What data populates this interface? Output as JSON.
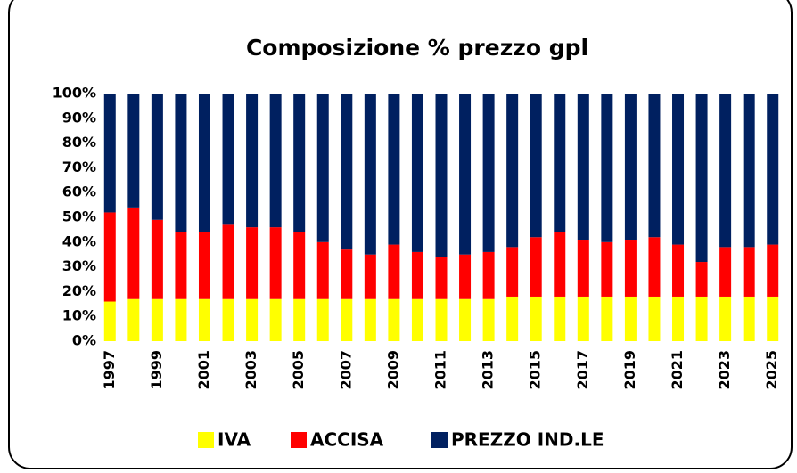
{
  "chart_data": {
    "type": "stacked_bar",
    "title": "Composizione % prezzo gpl",
    "categories": [
      "1997",
      null,
      "1999",
      null,
      "2001",
      null,
      "2003",
      null,
      "2005",
      null,
      "2007",
      null,
      "2009",
      null,
      "2011",
      null,
      "2013",
      null,
      "2015",
      null,
      "2017",
      null,
      "2019",
      null,
      "2021",
      null,
      "2023",
      null,
      "2025"
    ],
    "series": [
      {
        "name": "IVA",
        "color": "#ffff00",
        "values": [
          16,
          17,
          17,
          17,
          17,
          17,
          17,
          17,
          17,
          17,
          17,
          17,
          17,
          17,
          17,
          17,
          17,
          18,
          18,
          18,
          18,
          18,
          18,
          18,
          18,
          18,
          18,
          18,
          18
        ]
      },
      {
        "name": "ACCISA",
        "color": "#ff0000",
        "values": [
          36,
          37,
          32,
          27,
          27,
          30,
          29,
          29,
          27,
          23,
          20,
          18,
          22,
          19,
          17,
          18,
          19,
          20,
          24,
          26,
          23,
          22,
          23,
          24,
          21,
          14,
          20,
          20,
          21
        ]
      },
      {
        "name": "PREZZO IND.LE",
        "color": "#002060",
        "values": [
          48,
          46,
          51,
          56,
          56,
          53,
          54,
          54,
          56,
          60,
          63,
          65,
          61,
          64,
          66,
          65,
          64,
          62,
          58,
          56,
          59,
          60,
          59,
          58,
          61,
          68,
          62,
          62,
          61
        ]
      }
    ],
    "ylim": [
      0,
      100
    ],
    "yticks": [
      {
        "value": 0,
        "label": "0%"
      },
      {
        "value": 10,
        "label": "10%"
      },
      {
        "value": 20,
        "label": "20%"
      },
      {
        "value": 30,
        "label": "30%"
      },
      {
        "value": 40,
        "label": "40%"
      },
      {
        "value": 50,
        "label": "50%"
      },
      {
        "value": 60,
        "label": "60%"
      },
      {
        "value": 70,
        "label": "70%"
      },
      {
        "value": 80,
        "label": "80%"
      },
      {
        "value": 90,
        "label": "90%"
      },
      {
        "value": 100,
        "label": "100%"
      }
    ],
    "grid": false,
    "legend": "bottom"
  }
}
